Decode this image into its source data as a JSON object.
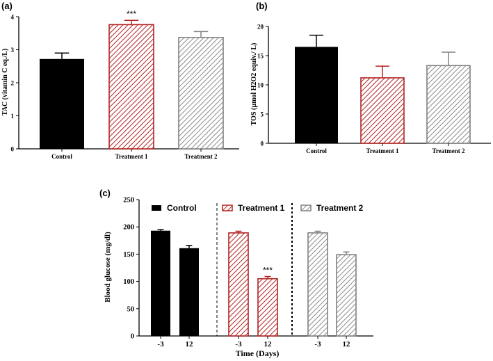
{
  "colors": {
    "control": "#000000",
    "treatment1": "#b22222",
    "treatment2": "#808080"
  },
  "chart_data": [
    {
      "panel": "(a)",
      "type": "bar",
      "categories": [
        "Control",
        "Treatment 1",
        "Treatment 2"
      ],
      "values": [
        2.72,
        3.76,
        3.37
      ],
      "errors": [
        0.18,
        0.13,
        0.18
      ],
      "annotations": [
        "",
        "***",
        ""
      ],
      "ylabel": "TAC (vitamin C eq./L)",
      "ylim": [
        0,
        4
      ],
      "yticks": [
        "0",
        "1",
        "2",
        "3",
        "4"
      ],
      "grid": false
    },
    {
      "panel": "(b)",
      "type": "bar",
      "categories": [
        "Control",
        "Treatment 1",
        "Treatment 2"
      ],
      "values": [
        16.5,
        11.2,
        13.3
      ],
      "errors": [
        2.0,
        2.0,
        2.3
      ],
      "annotations": [
        "",
        "",
        ""
      ],
      "ylabel": "TOS (µmol H2O2 equiv./ L)",
      "ylim": [
        0,
        20
      ],
      "yticks": [
        "0",
        "5",
        "10",
        "15",
        "20"
      ],
      "grid": false
    },
    {
      "panel": "(c)",
      "type": "bar",
      "xlabel": "Time (Days)",
      "ylabel": "Blood glucose (mg/dl)",
      "ylim": [
        0,
        250
      ],
      "yticks": [
        "0",
        "50",
        "100",
        "150",
        "200",
        "250"
      ],
      "legend": "top",
      "grid": false,
      "series": [
        {
          "name": "Control",
          "categories": [
            "-3",
            "12"
          ],
          "values": [
            193,
            161
          ],
          "errors": [
            2,
            5
          ],
          "annotations": [
            "",
            ""
          ]
        },
        {
          "name": "Treatment 1",
          "categories": [
            "-3",
            "12"
          ],
          "values": [
            189,
            105
          ],
          "errors": [
            3,
            4
          ],
          "annotations": [
            "",
            "***"
          ]
        },
        {
          "name": "Treatment 2",
          "categories": [
            "-3",
            "12"
          ],
          "values": [
            189,
            149
          ],
          "errors": [
            3,
            5
          ],
          "annotations": [
            "",
            ""
          ]
        }
      ]
    }
  ]
}
